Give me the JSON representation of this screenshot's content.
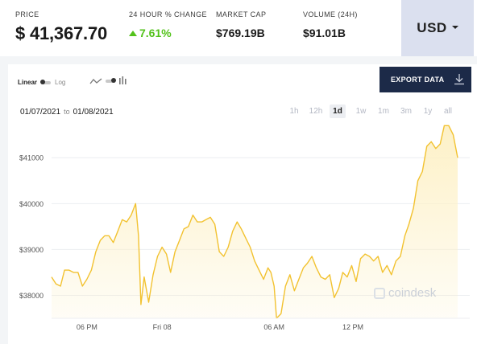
{
  "stats": {
    "price_label": "PRICE",
    "price_value": "$ 41,367.70",
    "change_label": "24 HOUR % CHANGE",
    "change_value": "7.61%",
    "market_cap_label": "MARKET CAP",
    "market_cap_value": "$769.19B",
    "volume_label": "VOLUME (24H)",
    "volume_value": "$91.01B"
  },
  "currency": {
    "value": "USD"
  },
  "toolbar": {
    "scale_linear": "Linear",
    "scale_log": "Log",
    "export_label": "EXPORT DATA",
    "export_icon": "download-icon",
    "chart_type_icons": [
      "line-icon",
      "bars-icon"
    ]
  },
  "date_range": {
    "from": "01/07/2021",
    "separator": "to",
    "to": "01/08/2021"
  },
  "ranges": {
    "items": [
      "1h",
      "12h",
      "1d",
      "1w",
      "1m",
      "3m",
      "1y",
      "all"
    ],
    "active": "1d"
  },
  "watermark": "coindesk",
  "colors": {
    "line": "#f2c230",
    "fill": "#fdf0c4",
    "positive": "#53c21b",
    "export_bg": "#1c2a48",
    "currency_bg": "#dbe0ef"
  },
  "chart_data": {
    "type": "area",
    "title": "",
    "xlabel": "",
    "ylabel": "",
    "ylim": [
      37500,
      41600
    ],
    "y_ticks": [
      "$38000",
      "$39000",
      "$40000",
      "$41000"
    ],
    "y_tick_values": [
      38000,
      39000,
      40000,
      41000
    ],
    "x_tick_labels": [
      "06 PM",
      "Fri 08",
      "06 AM",
      "12 PM"
    ],
    "x_tick_positions": [
      0.087,
      0.272,
      0.548,
      0.742
    ],
    "grid": "horizontal",
    "series": [
      {
        "x": [
          0,
          0.011,
          0.022,
          0.032,
          0.043,
          0.054,
          0.065,
          0.076,
          0.087,
          0.098,
          0.109,
          0.12,
          0.131,
          0.141,
          0.152,
          0.163,
          0.174,
          0.185,
          0.196,
          0.207,
          0.214,
          0.22,
          0.228,
          0.239,
          0.25,
          0.261,
          0.272,
          0.283,
          0.293,
          0.304,
          0.315,
          0.326,
          0.337,
          0.348,
          0.359,
          0.37,
          0.38,
          0.391,
          0.402,
          0.413,
          0.424,
          0.435,
          0.446,
          0.457,
          0.467,
          0.478,
          0.489,
          0.5,
          0.511,
          0.522,
          0.533,
          0.54,
          0.548,
          0.554,
          0.565,
          0.576,
          0.587,
          0.598,
          0.609,
          0.62,
          0.63,
          0.641,
          0.652,
          0.663,
          0.674,
          0.685,
          0.696,
          0.707,
          0.717,
          0.728,
          0.739,
          0.75,
          0.761,
          0.772,
          0.783,
          0.793,
          0.804,
          0.815,
          0.826,
          0.837,
          0.848,
          0.859,
          0.87,
          0.88,
          0.891,
          0.902,
          0.913,
          0.924,
          0.935,
          0.946,
          0.957,
          0.967,
          0.978,
          0.989,
          1
        ],
        "y": [
          38400,
          38250,
          38200,
          38550,
          38550,
          38500,
          38500,
          38200,
          38350,
          38550,
          38950,
          39200,
          39300,
          39300,
          39150,
          39400,
          39650,
          39600,
          39750,
          40000,
          39300,
          37800,
          38400,
          37850,
          38450,
          38850,
          39050,
          38900,
          38500,
          38950,
          39200,
          39450,
          39500,
          39750,
          39600,
          39600,
          39650,
          39700,
          39550,
          38950,
          38850,
          39050,
          39400,
          39600,
          39450,
          39250,
          39050,
          38750,
          38550,
          38350,
          38600,
          38500,
          38200,
          37500,
          37600,
          38200,
          38450,
          38100,
          38350,
          38600,
          38700,
          38850,
          38600,
          38400,
          38350,
          38450,
          37950,
          38150,
          38500,
          38400,
          38650,
          38300,
          38800,
          38900,
          38850,
          38750,
          38850,
          38500,
          38650,
          38450,
          38750,
          38850,
          39300,
          39550,
          39900,
          40500,
          40700,
          41250,
          41350,
          41200,
          41300,
          41700,
          41700,
          41500,
          41000
        ]
      }
    ]
  }
}
